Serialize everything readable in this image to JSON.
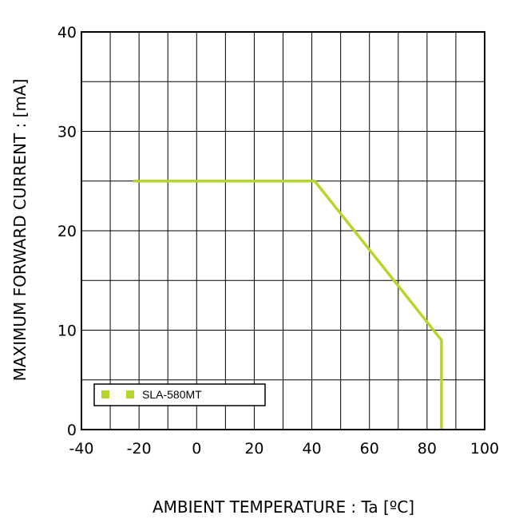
{
  "chart_data": {
    "type": "line",
    "xlabel": "AMBIENT TEMPERATURE : Ta [ºC]",
    "ylabel": "MAXIMUM FORWARD CURRENT :  [mA]",
    "xlim": [
      -40,
      100
    ],
    "ylim": [
      0,
      40
    ],
    "x_ticks": [
      "-40",
      "-20",
      "0",
      "20",
      "40",
      "60",
      "80",
      "100"
    ],
    "y_ticks": [
      "0",
      "10",
      "20",
      "30",
      "40"
    ],
    "grid": true,
    "legend_position": "bottom-left",
    "series": [
      {
        "name": "SLA-580MT",
        "color": "#b5d62b",
        "x": [
          -22,
          41,
          85,
          85
        ],
        "y": [
          25,
          25,
          9,
          0
        ]
      }
    ]
  }
}
